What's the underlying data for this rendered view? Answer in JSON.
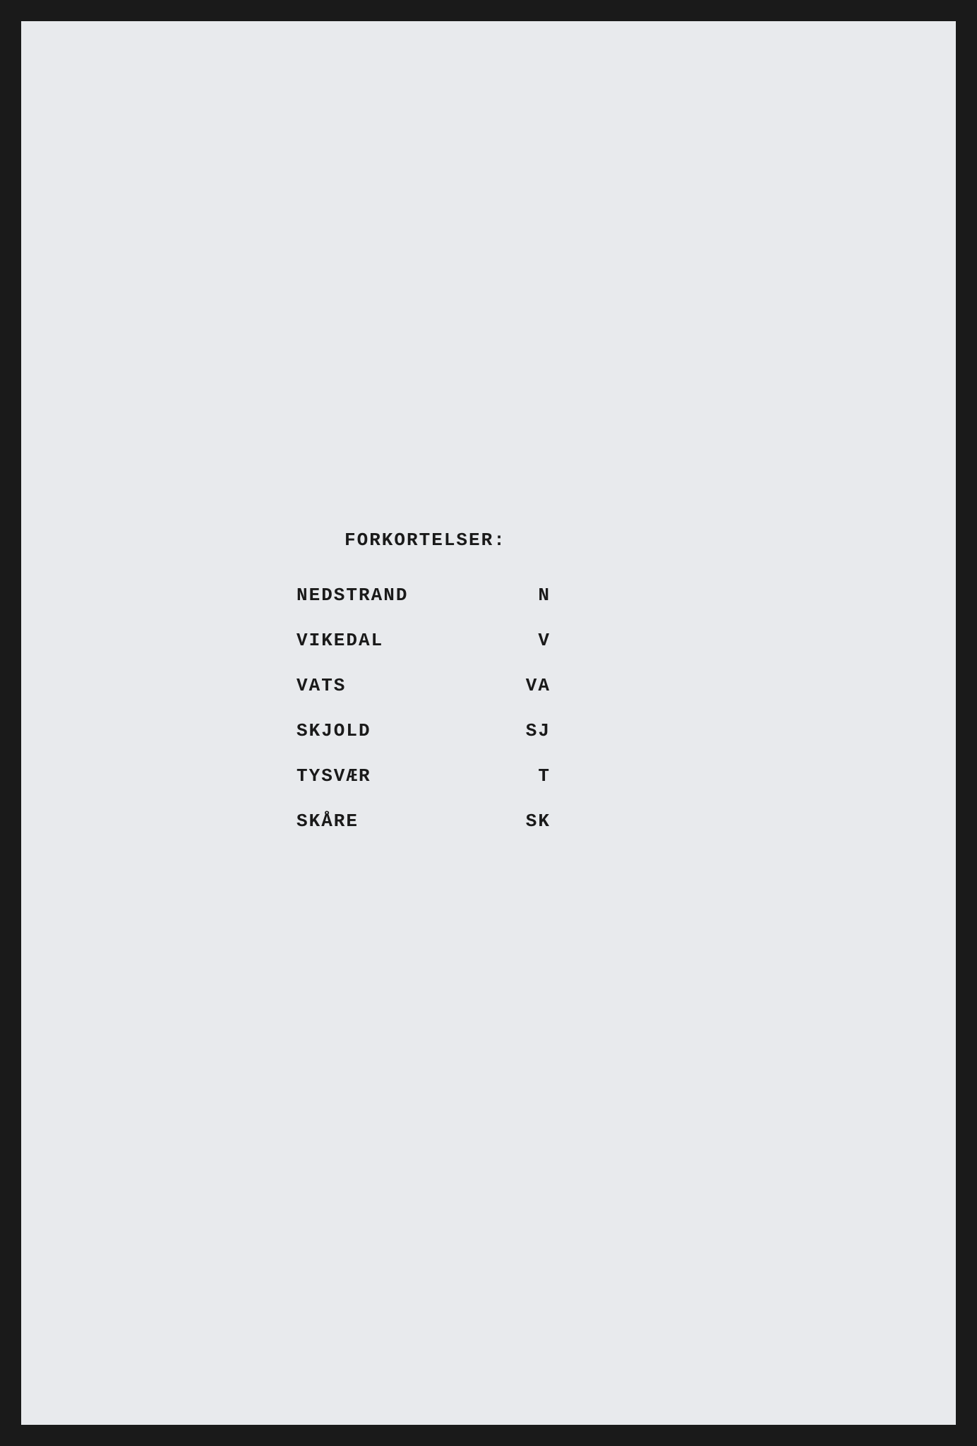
{
  "document": {
    "background_color": "#e8eaed",
    "text_color": "#1a1a1a",
    "font_family": "Courier New",
    "heading": "FORKORTELSER:",
    "abbreviations": [
      {
        "name": "NEDSTRAND",
        "abbr": "N"
      },
      {
        "name": "VIKEDAL",
        "abbr": "V"
      },
      {
        "name": "VATS",
        "abbr": "VA"
      },
      {
        "name": "SKJOLD",
        "abbr": "SJ"
      },
      {
        "name": "TYSVÆR",
        "abbr": "T"
      },
      {
        "name": "SKÅRE",
        "abbr": "SK"
      }
    ]
  }
}
